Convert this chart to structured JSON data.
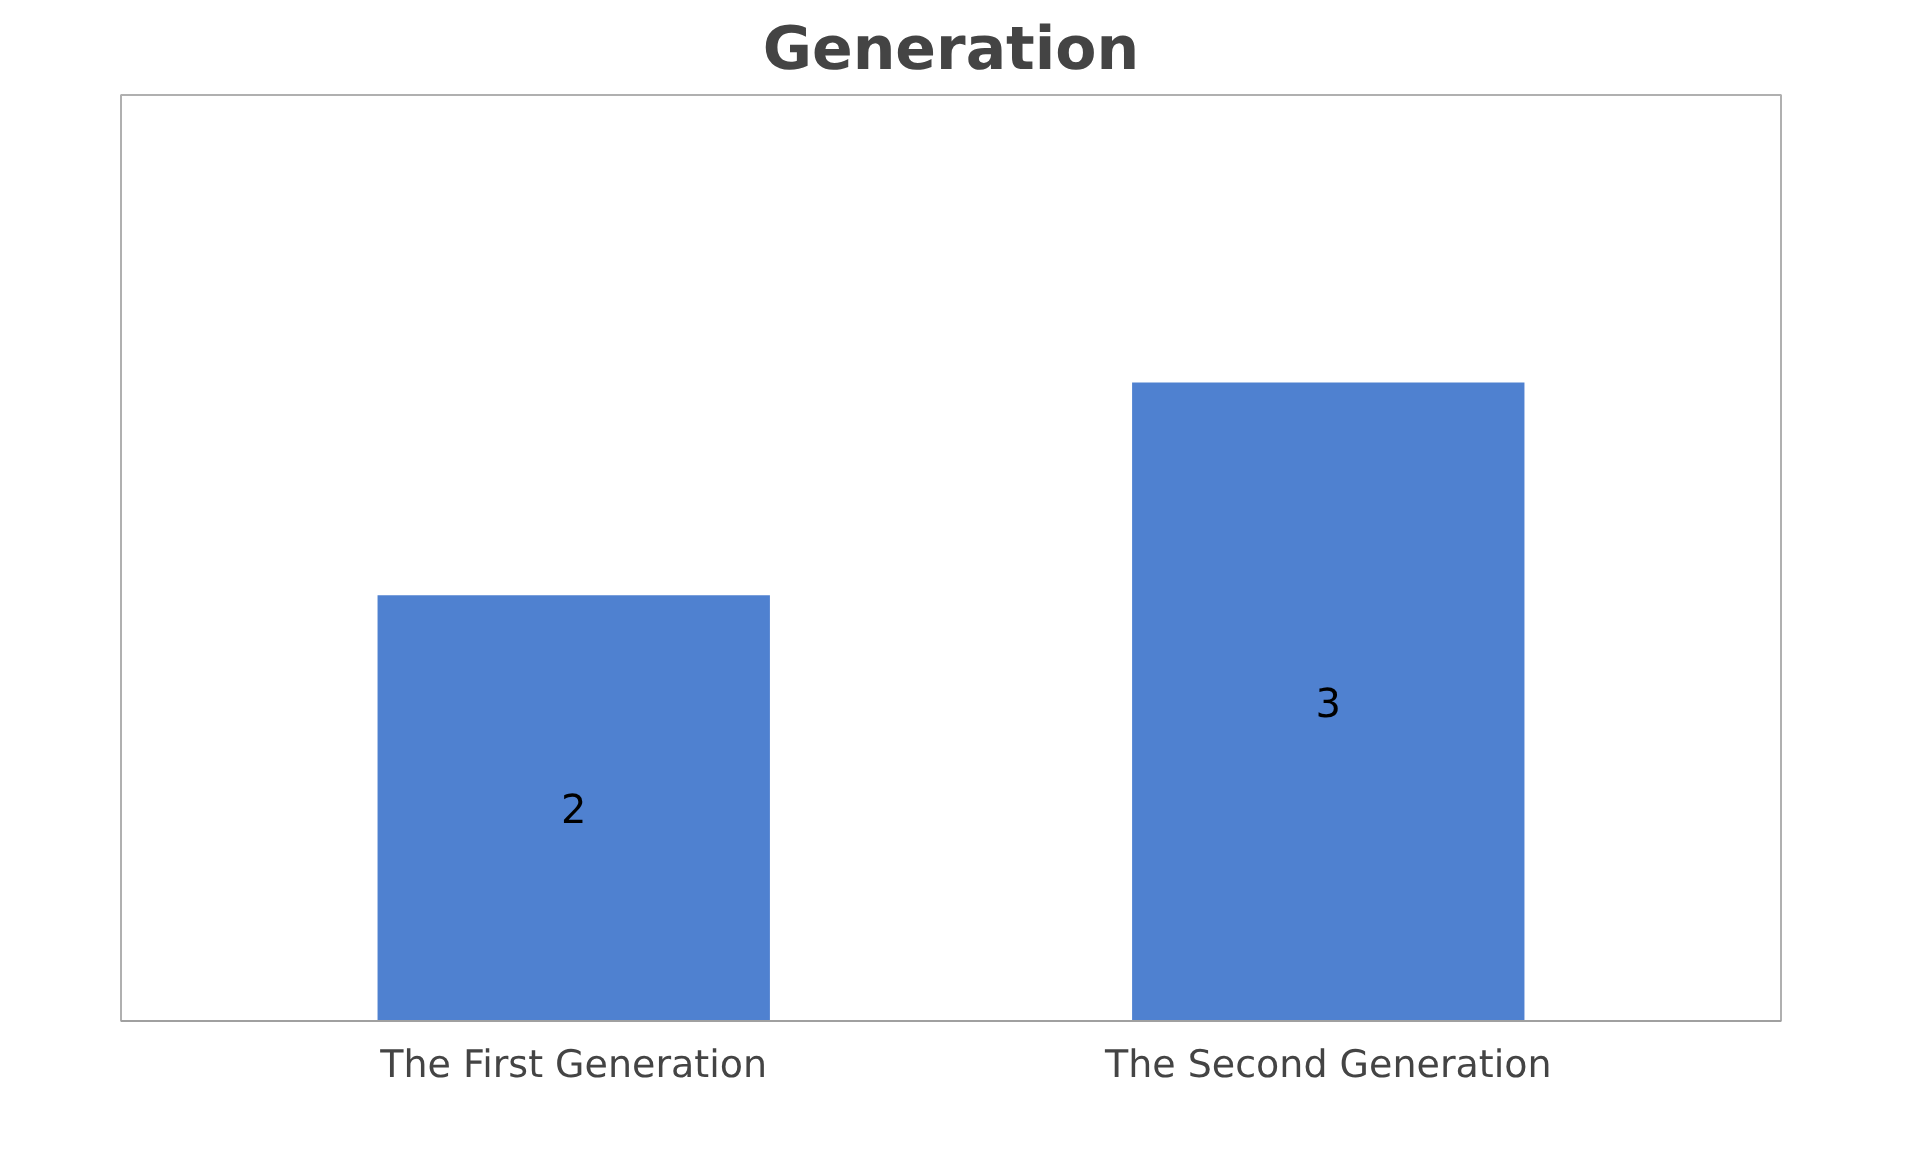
{
  "chart_data": {
    "type": "bar",
    "title": "Generation",
    "categories": [
      "The First Generation",
      "The Second Generation"
    ],
    "values": [
      2,
      3
    ],
    "color": "#4f81d0",
    "data_labels": true
  }
}
